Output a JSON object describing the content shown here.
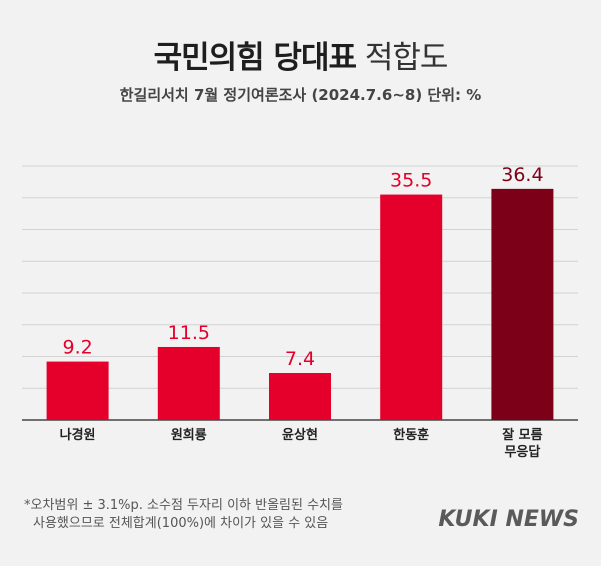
{
  "title_bold": "국민의힘 당대표",
  "title_light": "적합도",
  "subtitle": "한길리서치 7월 정기여론조사 (2024.7.6~8) 단위: %",
  "note": {
    "line1": "*오차범위 ± 3.1%p. 소수점 두자리 이하 반올림된 수치를",
    "line2": "사용했으므로 전체합계(100%)에 차이가 있을 수 있음"
  },
  "logo": "KUKI NEWS",
  "chart_data": {
    "type": "bar",
    "categories": [
      "나경원",
      "원희룡",
      "윤상현",
      "한동훈",
      "잘 모름\n무응답"
    ],
    "values": [
      9.2,
      11.5,
      7.4,
      35.5,
      36.4
    ],
    "ylim": [
      0,
      40
    ],
    "grid": true,
    "colors": {
      "bar": "#e4002b",
      "highlight": "#7d0019",
      "value_label": "#e4002b",
      "highlight_label": "#7d0019"
    },
    "highlight_index": 4
  }
}
